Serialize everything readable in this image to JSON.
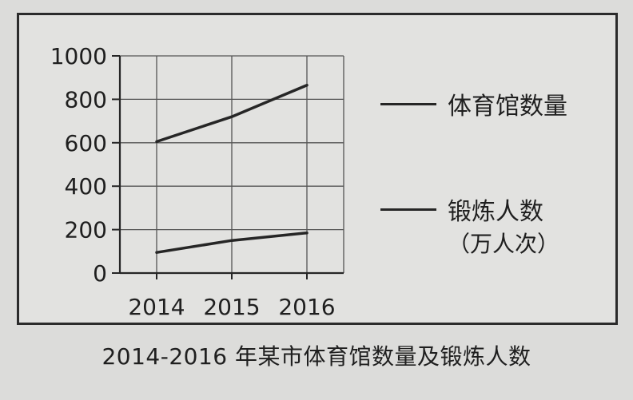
{
  "chart_data": {
    "type": "line",
    "title": "2014-2016 年某市体育馆数量及锻炼人数",
    "xlabel": "",
    "ylabel": "",
    "categories": [
      "2014",
      "2015",
      "2016"
    ],
    "ylim": [
      0,
      1000
    ],
    "yticks": [
      "0",
      "200",
      "400",
      "600",
      "800",
      "1000"
    ],
    "grid": true,
    "legend_position": "right",
    "series": [
      {
        "name": "体育馆数量",
        "values": [
          605,
          720,
          865
        ]
      },
      {
        "name": "锻炼人数",
        "unit_note": "（万人次）",
        "values": [
          95,
          150,
          185
        ]
      }
    ]
  },
  "colors": {
    "line": "#262626",
    "grid": "#555555",
    "background": "#e2e2e0"
  }
}
